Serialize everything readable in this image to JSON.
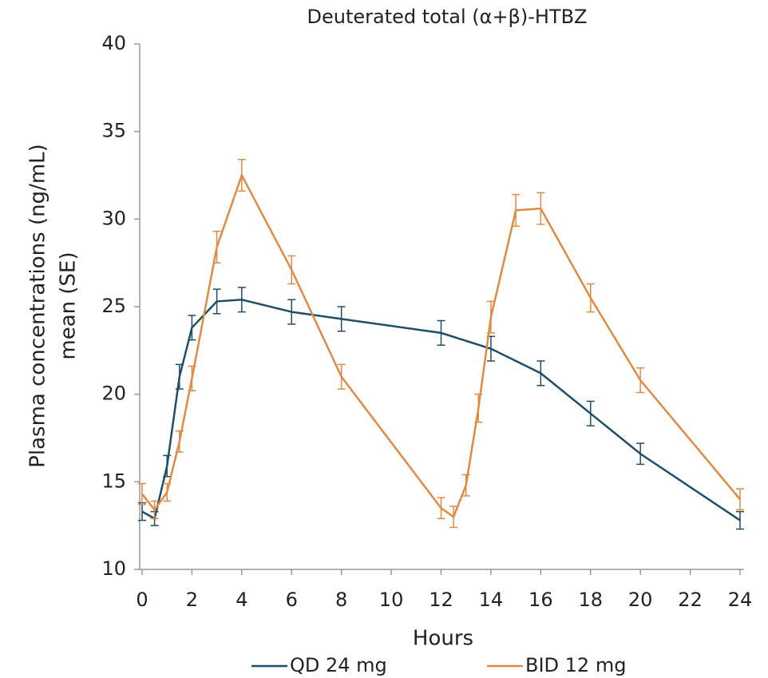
{
  "chart_data": {
    "type": "line",
    "title": "Deuterated total (α+β)-HTBZ",
    "x_label": "Hours",
    "y_label": [
      "Plasma concentrations (ng/mL)",
      "mean (SE)"
    ],
    "xlim": [
      0,
      24
    ],
    "xticks": [
      0,
      2,
      4,
      6,
      8,
      10,
      12,
      14,
      16,
      18,
      20,
      22,
      24
    ],
    "ylim": [
      10,
      40
    ],
    "yticks": [
      10,
      15,
      20,
      25,
      30,
      35,
      40
    ],
    "series": [
      {
        "name": "QD 24 mg",
        "color": "#1f4e66",
        "x": [
          0,
          0.5,
          1,
          1.5,
          2,
          3,
          4,
          6,
          8,
          12,
          14,
          16,
          18,
          20,
          24
        ],
        "values": [
          13.3,
          12.9,
          15.9,
          21.0,
          23.8,
          25.3,
          25.4,
          24.7,
          24.3,
          23.5,
          22.6,
          21.2,
          18.9,
          16.6,
          12.8
        ],
        "errors": [
          0.5,
          0.4,
          0.6,
          0.7,
          0.7,
          0.7,
          0.7,
          0.7,
          0.7,
          0.7,
          0.7,
          0.7,
          0.7,
          0.6,
          0.5
        ]
      },
      {
        "name": "BID 12 mg",
        "color": "#e08a44",
        "x": [
          0,
          0.5,
          1,
          1.5,
          2,
          3,
          4,
          6,
          8,
          12,
          12.5,
          13,
          13.5,
          14,
          15,
          16,
          18,
          20,
          24
        ],
        "values": [
          14.3,
          13.4,
          14.4,
          17.3,
          20.9,
          28.4,
          32.5,
          27.1,
          21.0,
          13.5,
          13.0,
          14.8,
          19.2,
          24.4,
          30.5,
          30.6,
          25.5,
          20.8,
          14.0
        ],
        "errors": [
          0.6,
          0.5,
          0.5,
          0.6,
          0.7,
          0.9,
          0.9,
          0.8,
          0.7,
          0.6,
          0.6,
          0.6,
          0.8,
          0.9,
          0.9,
          0.9,
          0.8,
          0.7,
          0.6
        ]
      }
    ]
  }
}
